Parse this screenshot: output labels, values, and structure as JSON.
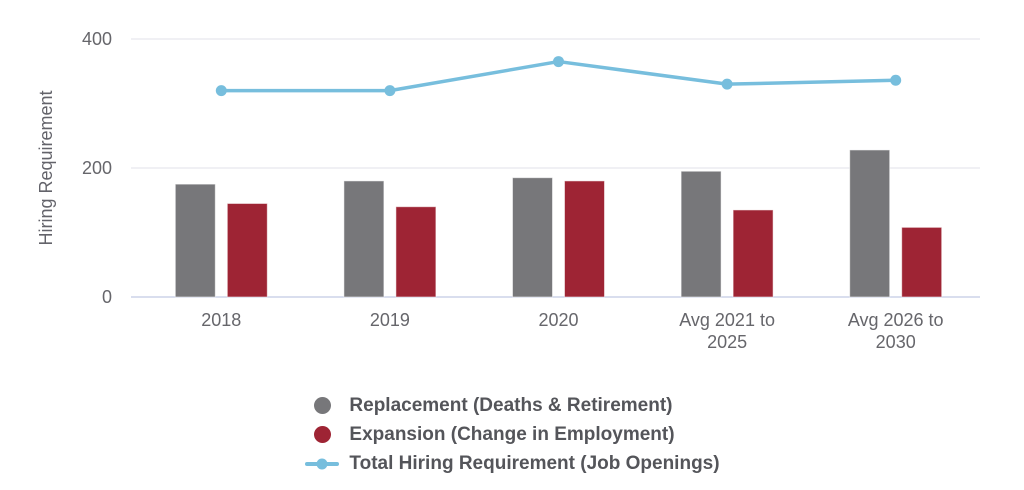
{
  "chart_data": {
    "type": "combo-bar-line",
    "title": "",
    "categories": [
      "2018",
      "2019",
      "2020",
      "Avg 2021 to 2025",
      "Avg 2026 to 2030"
    ],
    "series": [
      {
        "name": "Replacement (Deaths & Retirement)",
        "type": "bar",
        "color": "#77777a",
        "values": [
          175,
          180,
          185,
          195,
          228
        ]
      },
      {
        "name": "Expansion (Change in Employment)",
        "type": "bar",
        "color": "#9e2434",
        "values": [
          145,
          140,
          180,
          135,
          108
        ]
      },
      {
        "name": "Total Hiring Requirement (Job Openings)",
        "type": "line",
        "color": "#77bedd",
        "values": [
          320,
          320,
          365,
          330,
          336
        ]
      }
    ],
    "xlabel": "",
    "ylabel": "Hiring Requirement",
    "ylim": [
      0,
      400
    ],
    "yticks": [
      0,
      200,
      400
    ],
    "grid": true,
    "legend_position": "bottom"
  },
  "colors": {
    "background": "#ffffff",
    "axis_text": "#66666b",
    "legend_text": "#54555a",
    "gridline": "#ebebf0",
    "zero_line": "#d9deee",
    "bar_border": "rgba(255,255,255,0.55)"
  }
}
